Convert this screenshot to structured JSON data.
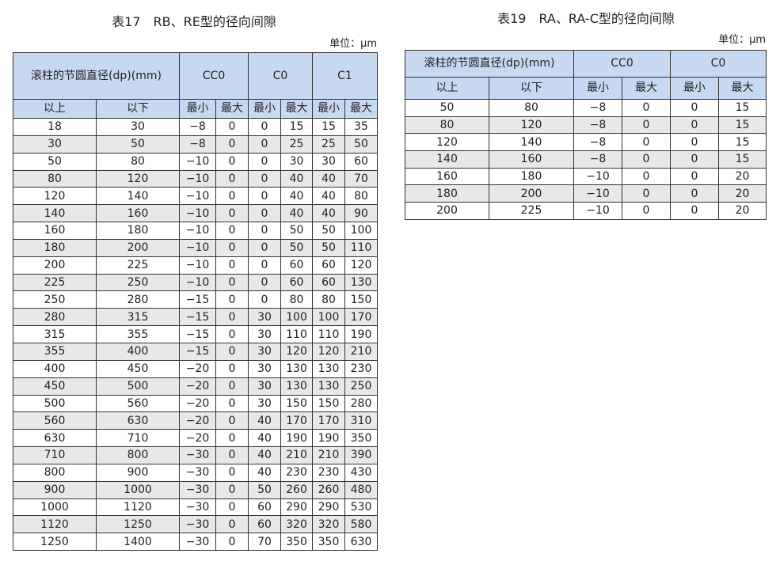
{
  "tables": [
    {
      "title": "表17　RB、RE型的径向间隙",
      "unit": "单位：μm",
      "header": {
        "diameter": "滚柱的节圆直径(dp)(mm)",
        "groups": [
          "CC0",
          "C0",
          "C1"
        ],
        "sub": [
          "以上",
          "以下",
          "最小",
          "最大",
          "最小",
          "最大",
          "最小",
          "最大"
        ]
      },
      "rows": [
        [
          "18",
          "30",
          "−8",
          "0",
          "0",
          "15",
          "15",
          "35"
        ],
        [
          "30",
          "50",
          "−8",
          "0",
          "0",
          "25",
          "25",
          "50"
        ],
        [
          "50",
          "80",
          "−10",
          "0",
          "0",
          "30",
          "30",
          "60"
        ],
        [
          "80",
          "120",
          "−10",
          "0",
          "0",
          "40",
          "40",
          "70"
        ],
        [
          "120",
          "140",
          "−10",
          "0",
          "0",
          "40",
          "40",
          "80"
        ],
        [
          "140",
          "160",
          "−10",
          "0",
          "0",
          "40",
          "40",
          "90"
        ],
        [
          "160",
          "180",
          "−10",
          "0",
          "0",
          "50",
          "50",
          "100"
        ],
        [
          "180",
          "200",
          "−10",
          "0",
          "0",
          "50",
          "50",
          "110"
        ],
        [
          "200",
          "225",
          "−10",
          "0",
          "0",
          "60",
          "60",
          "120"
        ],
        [
          "225",
          "250",
          "−10",
          "0",
          "0",
          "60",
          "60",
          "130"
        ],
        [
          "250",
          "280",
          "−15",
          "0",
          "0",
          "80",
          "80",
          "150"
        ],
        [
          "280",
          "315",
          "−15",
          "0",
          "30",
          "100",
          "100",
          "170"
        ],
        [
          "315",
          "355",
          "−15",
          "0",
          "30",
          "110",
          "110",
          "190"
        ],
        [
          "355",
          "400",
          "−15",
          "0",
          "30",
          "120",
          "120",
          "210"
        ],
        [
          "400",
          "450",
          "−20",
          "0",
          "30",
          "130",
          "130",
          "230"
        ],
        [
          "450",
          "500",
          "−20",
          "0",
          "30",
          "130",
          "130",
          "250"
        ],
        [
          "500",
          "560",
          "−20",
          "0",
          "30",
          "150",
          "150",
          "280"
        ],
        [
          "560",
          "630",
          "−20",
          "0",
          "40",
          "170",
          "170",
          "310"
        ],
        [
          "630",
          "710",
          "−20",
          "0",
          "40",
          "190",
          "190",
          "350"
        ],
        [
          "710",
          "800",
          "−30",
          "0",
          "40",
          "210",
          "210",
          "390"
        ],
        [
          "800",
          "900",
          "−30",
          "0",
          "40",
          "230",
          "230",
          "430"
        ],
        [
          "900",
          "1000",
          "−30",
          "0",
          "50",
          "260",
          "260",
          "480"
        ],
        [
          "1000",
          "1120",
          "−30",
          "0",
          "60",
          "290",
          "290",
          "530"
        ],
        [
          "1120",
          "1250",
          "−30",
          "0",
          "60",
          "320",
          "320",
          "580"
        ],
        [
          "1250",
          "1400",
          "−30",
          "0",
          "70",
          "350",
          "350",
          "630"
        ]
      ]
    },
    {
      "title": "表19　RA、RA-C型的径向间隙",
      "unit": "单位：μm",
      "header": {
        "diameter": "滚柱的节圆直径(dp)(mm)",
        "groups": [
          "CC0",
          "C0"
        ],
        "sub": [
          "以上",
          "以下",
          "最小",
          "最大",
          "最小",
          "最大"
        ]
      },
      "rows": [
        [
          "50",
          "80",
          "−8",
          "0",
          "0",
          "15"
        ],
        [
          "80",
          "120",
          "−8",
          "0",
          "0",
          "15"
        ],
        [
          "120",
          "140",
          "−8",
          "0",
          "0",
          "15"
        ],
        [
          "140",
          "160",
          "−8",
          "0",
          "0",
          "15"
        ],
        [
          "160",
          "180",
          "−10",
          "0",
          "0",
          "20"
        ],
        [
          "180",
          "200",
          "−10",
          "0",
          "0",
          "20"
        ],
        [
          "200",
          "225",
          "−10",
          "0",
          "0",
          "20"
        ]
      ]
    }
  ]
}
